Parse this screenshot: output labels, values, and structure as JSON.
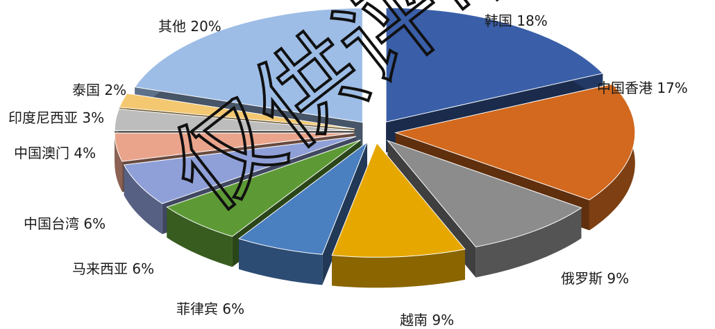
{
  "chart_data": {
    "type": "pie",
    "title": "",
    "exploded": true,
    "three_d": true,
    "slices": [
      {
        "label": "韩国 18%",
        "value": 18,
        "color": "#3a5fa8"
      },
      {
        "label": "中国香港 17%",
        "value": 17,
        "color": "#d2691e"
      },
      {
        "label": "俄罗斯 9%",
        "value": 9,
        "color": "#8c8c8c"
      },
      {
        "label": "越南 9%",
        "value": 9,
        "color": "#e6a800"
      },
      {
        "label": "菲律宾 6%",
        "value": 6,
        "color": "#4a7fc0"
      },
      {
        "label": "马来西亚 6%",
        "value": 6,
        "color": "#5d9a36"
      },
      {
        "label": "中国台湾 6%",
        "value": 6,
        "color": "#8fa0d8"
      },
      {
        "label": "中国澳门 4%",
        "value": 4,
        "color": "#eaa48c"
      },
      {
        "label": "印度尼西亚 3%",
        "value": 3,
        "color": "#bdbdbd"
      },
      {
        "label": "泰国 2%",
        "value": 2,
        "color": "#f4c870"
      },
      {
        "label": "其他 20%",
        "value": 20,
        "color": "#9dbde6"
      }
    ]
  },
  "watermark": "仅供评审"
}
